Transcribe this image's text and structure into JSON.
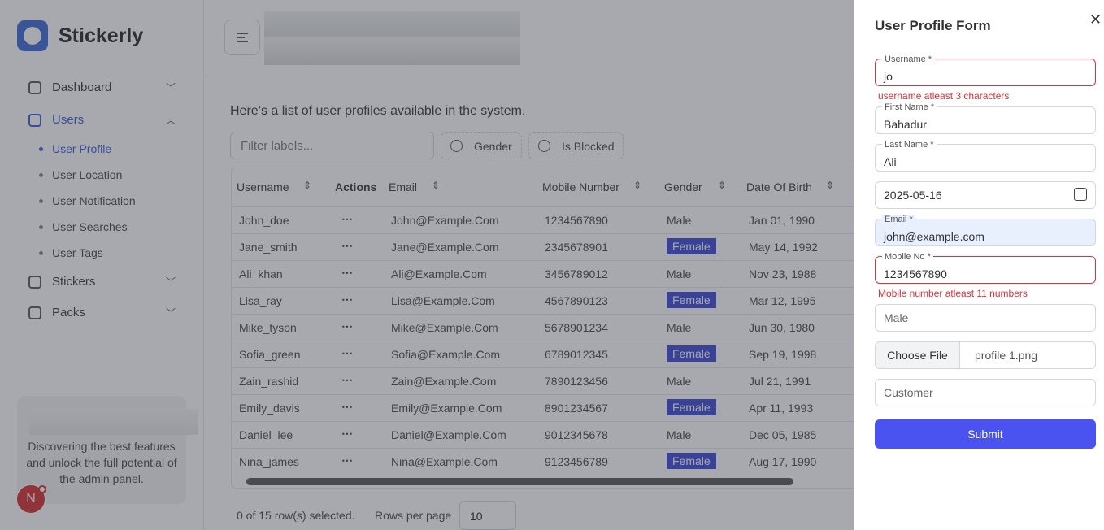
{
  "sidebar": {
    "brand": "Stickerly",
    "nav": [
      {
        "label": "Dashboard"
      },
      {
        "label": "Users",
        "children": [
          "User Profile",
          "User Location",
          "User Notification",
          "User Searches",
          "User Tags"
        ]
      },
      {
        "label": "Stickers"
      },
      {
        "label": "Packs"
      }
    ],
    "promo": "Discovering the best features and unlock the full potential of the admin panel.",
    "avatar": "N"
  },
  "main": {
    "description": "Here’s a list of user profiles available in the system.",
    "filter_placeholder": "Filter labels...",
    "filters": [
      "Gender",
      "Is Blocked"
    ],
    "table": {
      "columns": [
        "Username",
        "Actions",
        "Email",
        "Mobile Number",
        "Gender",
        "Date Of Birth"
      ],
      "rows": [
        [
          "John_doe",
          "John@Example.Com",
          "1234567890",
          "Male",
          "Jan 01, 1990"
        ],
        [
          "Jane_smith",
          "Jane@Example.Com",
          "2345678901",
          "Female",
          "May 14, 1992"
        ],
        [
          "Ali_khan",
          "Ali@Example.Com",
          "3456789012",
          "Male",
          "Nov 23, 1988"
        ],
        [
          "Lisa_ray",
          "Lisa@Example.Com",
          "4567890123",
          "Female",
          "Mar 12, 1995"
        ],
        [
          "Mike_tyson",
          "Mike@Example.Com",
          "5678901234",
          "Male",
          "Jun 30, 1980"
        ],
        [
          "Sofia_green",
          "Sofia@Example.Com",
          "6789012345",
          "Female",
          "Sep 19, 1998"
        ],
        [
          "Zain_rashid",
          "Zain@Example.Com",
          "7890123456",
          "Male",
          "Jul 21, 1991"
        ],
        [
          "Emily_davis",
          "Emily@Example.Com",
          "8901234567",
          "Female",
          "Apr 11, 1993"
        ],
        [
          "Daniel_lee",
          "Daniel@Example.Com",
          "9012345678",
          "Male",
          "Dec 05, 1985"
        ],
        [
          "Nina_james",
          "Nina@Example.Com",
          "9123456789",
          "Female",
          "Aug 17, 1990"
        ]
      ]
    },
    "footer": {
      "selection": "0 of 15 row(s) selected.",
      "rows_per_page_label": "Rows per page",
      "rows_per_page": "10"
    }
  },
  "form": {
    "title": "User Profile Form",
    "fields": [
      {
        "label": "Username *",
        "value": "jo",
        "error": "username atleast 3 characters"
      },
      {
        "label": "First Name *",
        "value": "Bahadur"
      },
      {
        "label": "Last Name *",
        "value": "Ali"
      },
      {
        "value": "2025-05-16"
      },
      {
        "label": "Email *",
        "value": "john@example.com"
      },
      {
        "label": "Mobile No *",
        "value": "1234567890",
        "error": "Mobile number atleast 11 numbers"
      },
      {
        "placeholder": "Male"
      },
      {
        "button": "Choose File",
        "value": "profile 1.png"
      },
      {
        "placeholder": "Customer"
      }
    ],
    "submit": "Submit"
  }
}
